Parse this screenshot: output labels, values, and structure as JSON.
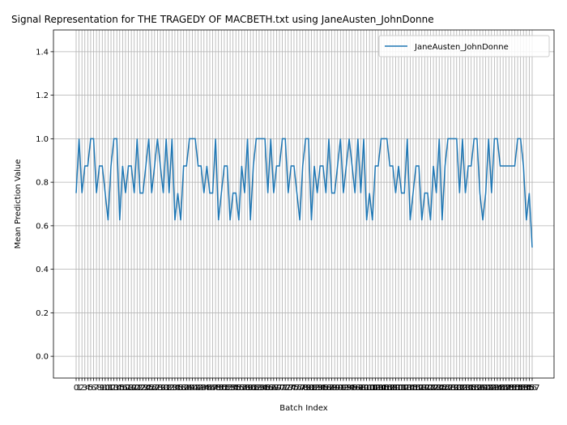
{
  "chart_data": {
    "type": "line",
    "title": "Signal Representation for THE TRAGEDY OF MACBETH.txt using JaneAusten_JohnDonne",
    "xlabel": "Batch Index",
    "ylabel": "Mean Prediction Value",
    "ylim": [
      -0.1,
      1.5
    ],
    "yticks": [
      "0.0",
      "0.2",
      "0.4",
      "0.6",
      "0.8",
      "1.0",
      "1.2",
      "1.4"
    ],
    "grid": true,
    "legend_position": "top-right",
    "colors": {
      "series": "#1f77b4",
      "grid": "#b0b0b0"
    },
    "series": [
      {
        "name": "JaneAusten_JohnDonne",
        "values": [
          0.75,
          1.0,
          0.75,
          0.875,
          0.875,
          1.0,
          1.0,
          0.75,
          0.875,
          0.875,
          0.75,
          0.625,
          0.875,
          1.0,
          1.0,
          0.625,
          0.875,
          0.75,
          0.875,
          0.875,
          0.75,
          1.0,
          0.75,
          0.75,
          0.875,
          1.0,
          0.75,
          0.875,
          1.0,
          0.875,
          0.75,
          1.0,
          0.75,
          1.0,
          0.625,
          0.75,
          0.625,
          0.875,
          0.875,
          1.0,
          1.0,
          1.0,
          0.875,
          0.875,
          0.75,
          0.875,
          0.75,
          0.75,
          1.0,
          0.625,
          0.75,
          0.875,
          0.875,
          0.625,
          0.75,
          0.75,
          0.625,
          0.875,
          0.75,
          1.0,
          0.625,
          0.875,
          1.0,
          1.0,
          1.0,
          1.0,
          0.75,
          1.0,
          0.75,
          0.875,
          0.875,
          1.0,
          1.0,
          0.75,
          0.875,
          0.875,
          0.75,
          0.625,
          0.875,
          1.0,
          1.0,
          0.625,
          0.875,
          0.75,
          0.875,
          0.875,
          0.75,
          1.0,
          0.75,
          0.75,
          0.875,
          1.0,
          0.75,
          0.875,
          1.0,
          0.875,
          0.75,
          1.0,
          0.75,
          1.0,
          0.625,
          0.75,
          0.625,
          0.875,
          0.875,
          1.0,
          1.0,
          1.0,
          0.875,
          0.875,
          0.75,
          0.875,
          0.75,
          0.75,
          1.0,
          0.625,
          0.75,
          0.875,
          0.875,
          0.625,
          0.75,
          0.75,
          0.625,
          0.875,
          0.75,
          1.0,
          0.625,
          0.875,
          1.0,
          1.0,
          1.0,
          1.0,
          0.75,
          1.0,
          0.75,
          0.875,
          0.875,
          1.0,
          1.0,
          0.75,
          0.625,
          0.75,
          1.0,
          0.75,
          1.0,
          1.0,
          0.875,
          0.875,
          0.875,
          0.875,
          0.875,
          0.875,
          1.0,
          1.0,
          0.875,
          0.625,
          0.75,
          0.5
        ]
      }
    ]
  }
}
